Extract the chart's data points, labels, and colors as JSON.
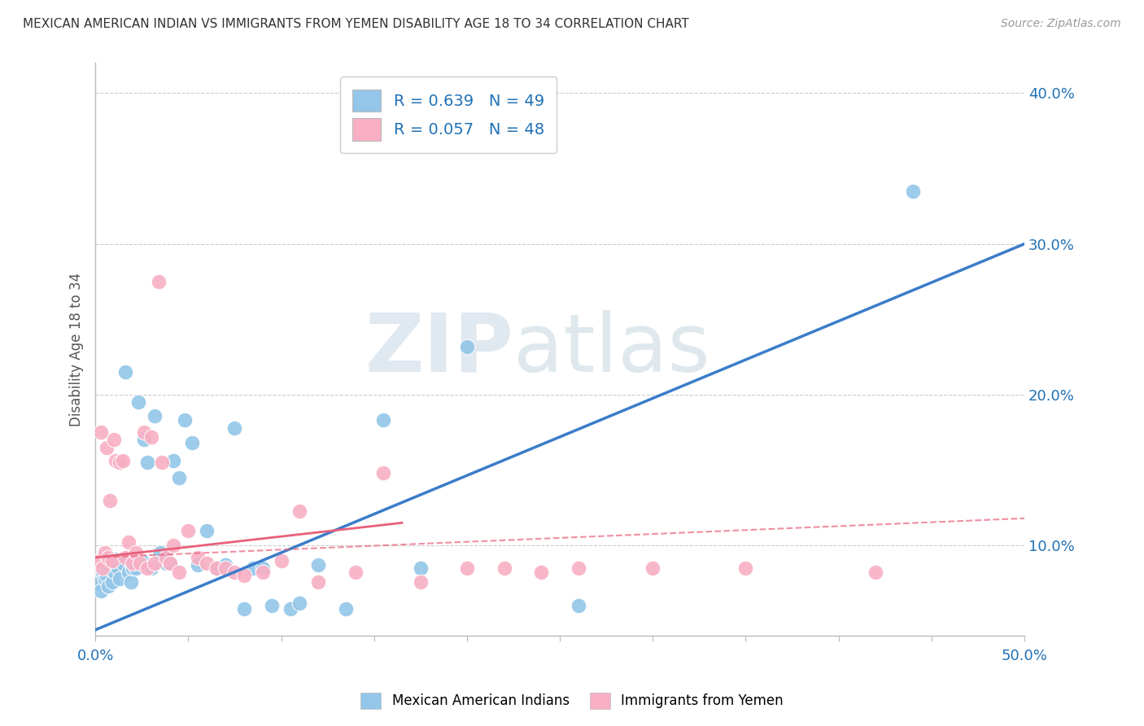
{
  "title": "MEXICAN AMERICAN INDIAN VS IMMIGRANTS FROM YEMEN DISABILITY AGE 18 TO 34 CORRELATION CHART",
  "source": "Source: ZipAtlas.com",
  "ylabel": "Disability Age 18 to 34",
  "xlim": [
    0.0,
    0.5
  ],
  "ylim": [
    0.04,
    0.42
  ],
  "xticks": [
    0.0,
    0.05,
    0.1,
    0.15,
    0.2,
    0.25,
    0.3,
    0.35,
    0.4,
    0.45,
    0.5
  ],
  "yticks_right": [
    0.1,
    0.2,
    0.3,
    0.4
  ],
  "blue_color": "#93c6e8",
  "pink_color": "#f8afc4",
  "blue_line_color": "#3a7dc9",
  "pink_line_color": "#e8607a",
  "series1_label": "Mexican American Indians",
  "series2_label": "Immigrants from Yemen",
  "blue_scatter_x": [
    0.002,
    0.003,
    0.004,
    0.005,
    0.006,
    0.007,
    0.008,
    0.009,
    0.01,
    0.01,
    0.012,
    0.013,
    0.015,
    0.016,
    0.018,
    0.019,
    0.02,
    0.022,
    0.023,
    0.025,
    0.026,
    0.028,
    0.03,
    0.032,
    0.035,
    0.038,
    0.04,
    0.042,
    0.045,
    0.048,
    0.052,
    0.055,
    0.06,
    0.065,
    0.07,
    0.075,
    0.08,
    0.085,
    0.09,
    0.095,
    0.105,
    0.11,
    0.12,
    0.135,
    0.155,
    0.175,
    0.2,
    0.26,
    0.44
  ],
  "blue_scatter_y": [
    0.075,
    0.07,
    0.082,
    0.078,
    0.08,
    0.073,
    0.085,
    0.076,
    0.083,
    0.091,
    0.085,
    0.078,
    0.088,
    0.215,
    0.082,
    0.076,
    0.085,
    0.085,
    0.195,
    0.09,
    0.17,
    0.155,
    0.085,
    0.186,
    0.095,
    0.088,
    0.088,
    0.156,
    0.145,
    0.183,
    0.168,
    0.087,
    0.11,
    0.085,
    0.087,
    0.178,
    0.058,
    0.085,
    0.085,
    0.06,
    0.058,
    0.062,
    0.087,
    0.058,
    0.183,
    0.085,
    0.232,
    0.06,
    0.335
  ],
  "pink_scatter_x": [
    0.002,
    0.003,
    0.004,
    0.005,
    0.006,
    0.007,
    0.008,
    0.009,
    0.01,
    0.011,
    0.013,
    0.015,
    0.016,
    0.018,
    0.02,
    0.022,
    0.024,
    0.026,
    0.028,
    0.03,
    0.032,
    0.034,
    0.036,
    0.038,
    0.04,
    0.042,
    0.045,
    0.05,
    0.055,
    0.06,
    0.065,
    0.07,
    0.075,
    0.08,
    0.09,
    0.1,
    0.11,
    0.12,
    0.14,
    0.155,
    0.175,
    0.2,
    0.22,
    0.24,
    0.26,
    0.3,
    0.35,
    0.42
  ],
  "pink_scatter_y": [
    0.09,
    0.175,
    0.085,
    0.095,
    0.165,
    0.092,
    0.13,
    0.09,
    0.17,
    0.156,
    0.155,
    0.156,
    0.092,
    0.102,
    0.088,
    0.095,
    0.088,
    0.175,
    0.085,
    0.172,
    0.088,
    0.275,
    0.155,
    0.092,
    0.088,
    0.1,
    0.082,
    0.11,
    0.092,
    0.088,
    0.085,
    0.085,
    0.082,
    0.08,
    0.082,
    0.09,
    0.123,
    0.076,
    0.082,
    0.148,
    0.076,
    0.085,
    0.085,
    0.082,
    0.085,
    0.085,
    0.085,
    0.082
  ],
  "blue_trend_x": [
    0.0,
    0.5
  ],
  "blue_trend_y": [
    0.044,
    0.3
  ],
  "pink_solid_trend_x": [
    0.0,
    0.165
  ],
  "pink_solid_trend_y": [
    0.092,
    0.115
  ],
  "pink_dashed_trend_x": [
    0.0,
    0.5
  ],
  "pink_dashed_trend_y": [
    0.092,
    0.118
  ],
  "watermark_zip": "ZIP",
  "watermark_atlas": "atlas",
  "bg_color": "#ffffff",
  "grid_color": "#cccccc"
}
